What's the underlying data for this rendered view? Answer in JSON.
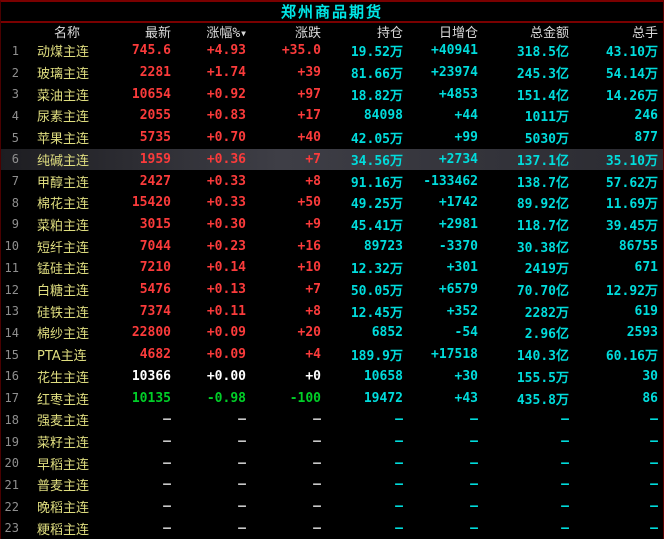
{
  "title": "郑州商品期货",
  "colors": {
    "title_cyan": "#00e7e7",
    "header_gray": "#d9d9d9",
    "row_num_gray": "#8f8f8f",
    "name_yellow": "#dfdd7f",
    "up_red": "#fb3b3b",
    "down_green": "#00cf28",
    "flat_white": "#ffffff",
    "data_cyan": "#00dcdc",
    "dash_gray": "#c8c8c8",
    "divider_maroon": "#7a0000",
    "selected_row_bg": "#3e3e46"
  },
  "table": {
    "columns": [
      {
        "key": "num",
        "label": ""
      },
      {
        "key": "name",
        "label": "名称"
      },
      {
        "key": "latest",
        "label": "最新"
      },
      {
        "key": "pct",
        "label": "涨幅%",
        "sort_icon": "▼"
      },
      {
        "key": "chg",
        "label": "涨跌"
      },
      {
        "key": "oi",
        "label": "持仓"
      },
      {
        "key": "oi_chg",
        "label": "日增仓"
      },
      {
        "key": "amount",
        "label": "总金额"
      },
      {
        "key": "vol",
        "label": "总手"
      }
    ],
    "rows": [
      {
        "num": "1",
        "name": "动煤主连",
        "latest": "745.6",
        "pct": "+4.93",
        "chg": "+35.0",
        "oi": "19.52万",
        "oi_chg": "+40941",
        "amount": "318.5亿",
        "vol": "43.10万",
        "trend": "up",
        "selected": false
      },
      {
        "num": "2",
        "name": "玻璃主连",
        "latest": "2281",
        "pct": "+1.74",
        "chg": "+39",
        "oi": "81.66万",
        "oi_chg": "+23974",
        "amount": "245.3亿",
        "vol": "54.14万",
        "trend": "up",
        "selected": false
      },
      {
        "num": "3",
        "name": "菜油主连",
        "latest": "10654",
        "pct": "+0.92",
        "chg": "+97",
        "oi": "18.82万",
        "oi_chg": "+4853",
        "amount": "151.4亿",
        "vol": "14.26万",
        "trend": "up",
        "selected": false
      },
      {
        "num": "4",
        "name": "尿素主连",
        "latest": "2055",
        "pct": "+0.83",
        "chg": "+17",
        "oi": "84098",
        "oi_chg": "+44",
        "amount": "1011万",
        "vol": "246",
        "trend": "up",
        "selected": false
      },
      {
        "num": "5",
        "name": "苹果主连",
        "latest": "5735",
        "pct": "+0.70",
        "chg": "+40",
        "oi": "42.05万",
        "oi_chg": "+99",
        "amount": "5030万",
        "vol": "877",
        "trend": "up",
        "selected": false
      },
      {
        "num": "6",
        "name": "纯碱主连",
        "latest": "1959",
        "pct": "+0.36",
        "chg": "+7",
        "oi": "34.56万",
        "oi_chg": "+2734",
        "amount": "137.1亿",
        "vol": "35.10万",
        "trend": "up",
        "selected": true
      },
      {
        "num": "7",
        "name": "甲醇主连",
        "latest": "2427",
        "pct": "+0.33",
        "chg": "+8",
        "oi": "91.16万",
        "oi_chg": "-133462",
        "amount": "138.7亿",
        "vol": "57.62万",
        "trend": "up",
        "selected": false
      },
      {
        "num": "8",
        "name": "棉花主连",
        "latest": "15420",
        "pct": "+0.33",
        "chg": "+50",
        "oi": "49.25万",
        "oi_chg": "+1742",
        "amount": "89.92亿",
        "vol": "11.69万",
        "trend": "up",
        "selected": false
      },
      {
        "num": "9",
        "name": "菜粕主连",
        "latest": "3015",
        "pct": "+0.30",
        "chg": "+9",
        "oi": "45.41万",
        "oi_chg": "+2981",
        "amount": "118.7亿",
        "vol": "39.45万",
        "trend": "up",
        "selected": false
      },
      {
        "num": "10",
        "name": "短纤主连",
        "latest": "7044",
        "pct": "+0.23",
        "chg": "+16",
        "oi": "89723",
        "oi_chg": "-3370",
        "amount": "30.38亿",
        "vol": "86755",
        "trend": "up",
        "selected": false
      },
      {
        "num": "11",
        "name": "锰硅主连",
        "latest": "7210",
        "pct": "+0.14",
        "chg": "+10",
        "oi": "12.32万",
        "oi_chg": "+301",
        "amount": "2419万",
        "vol": "671",
        "trend": "up",
        "selected": false
      },
      {
        "num": "12",
        "name": "白糖主连",
        "latest": "5476",
        "pct": "+0.13",
        "chg": "+7",
        "oi": "50.05万",
        "oi_chg": "+6579",
        "amount": "70.70亿",
        "vol": "12.92万",
        "trend": "up",
        "selected": false
      },
      {
        "num": "13",
        "name": "硅铁主连",
        "latest": "7374",
        "pct": "+0.11",
        "chg": "+8",
        "oi": "12.45万",
        "oi_chg": "+352",
        "amount": "2282万",
        "vol": "619",
        "trend": "up",
        "selected": false
      },
      {
        "num": "14",
        "name": "棉纱主连",
        "latest": "22800",
        "pct": "+0.09",
        "chg": "+20",
        "oi": "6852",
        "oi_chg": "-54",
        "amount": "2.96亿",
        "vol": "2593",
        "trend": "up",
        "selected": false
      },
      {
        "num": "15",
        "name": "PTA主连",
        "latest": "4682",
        "pct": "+0.09",
        "chg": "+4",
        "oi": "189.9万",
        "oi_chg": "+17518",
        "amount": "140.3亿",
        "vol": "60.16万",
        "trend": "up",
        "selected": false
      },
      {
        "num": "16",
        "name": "花生主连",
        "latest": "10366",
        "pct": "+0.00",
        "chg": "+0",
        "oi": "10658",
        "oi_chg": "+30",
        "amount": "155.5万",
        "vol": "30",
        "trend": "flat",
        "selected": false
      },
      {
        "num": "17",
        "name": "红枣主连",
        "latest": "10135",
        "pct": "-0.98",
        "chg": "-100",
        "oi": "19472",
        "oi_chg": "+43",
        "amount": "435.8万",
        "vol": "86",
        "trend": "down",
        "selected": false
      },
      {
        "num": "18",
        "name": "强麦主连",
        "latest": "—",
        "pct": "—",
        "chg": "—",
        "oi": "—",
        "oi_chg": "—",
        "amount": "—",
        "vol": "—",
        "trend": "none",
        "selected": false
      },
      {
        "num": "19",
        "name": "菜籽主连",
        "latest": "—",
        "pct": "—",
        "chg": "—",
        "oi": "—",
        "oi_chg": "—",
        "amount": "—",
        "vol": "—",
        "trend": "none",
        "selected": false
      },
      {
        "num": "20",
        "name": "早稻主连",
        "latest": "—",
        "pct": "—",
        "chg": "—",
        "oi": "—",
        "oi_chg": "—",
        "amount": "—",
        "vol": "—",
        "trend": "none",
        "selected": false
      },
      {
        "num": "21",
        "name": "普麦主连",
        "latest": "—",
        "pct": "—",
        "chg": "—",
        "oi": "—",
        "oi_chg": "—",
        "amount": "—",
        "vol": "—",
        "trend": "none",
        "selected": false
      },
      {
        "num": "22",
        "name": "晚稻主连",
        "latest": "—",
        "pct": "—",
        "chg": "—",
        "oi": "—",
        "oi_chg": "—",
        "amount": "—",
        "vol": "—",
        "trend": "none",
        "selected": false
      },
      {
        "num": "23",
        "name": "粳稻主连",
        "latest": "—",
        "pct": "—",
        "chg": "—",
        "oi": "—",
        "oi_chg": "—",
        "amount": "—",
        "vol": "—",
        "trend": "none",
        "selected": false
      }
    ]
  }
}
